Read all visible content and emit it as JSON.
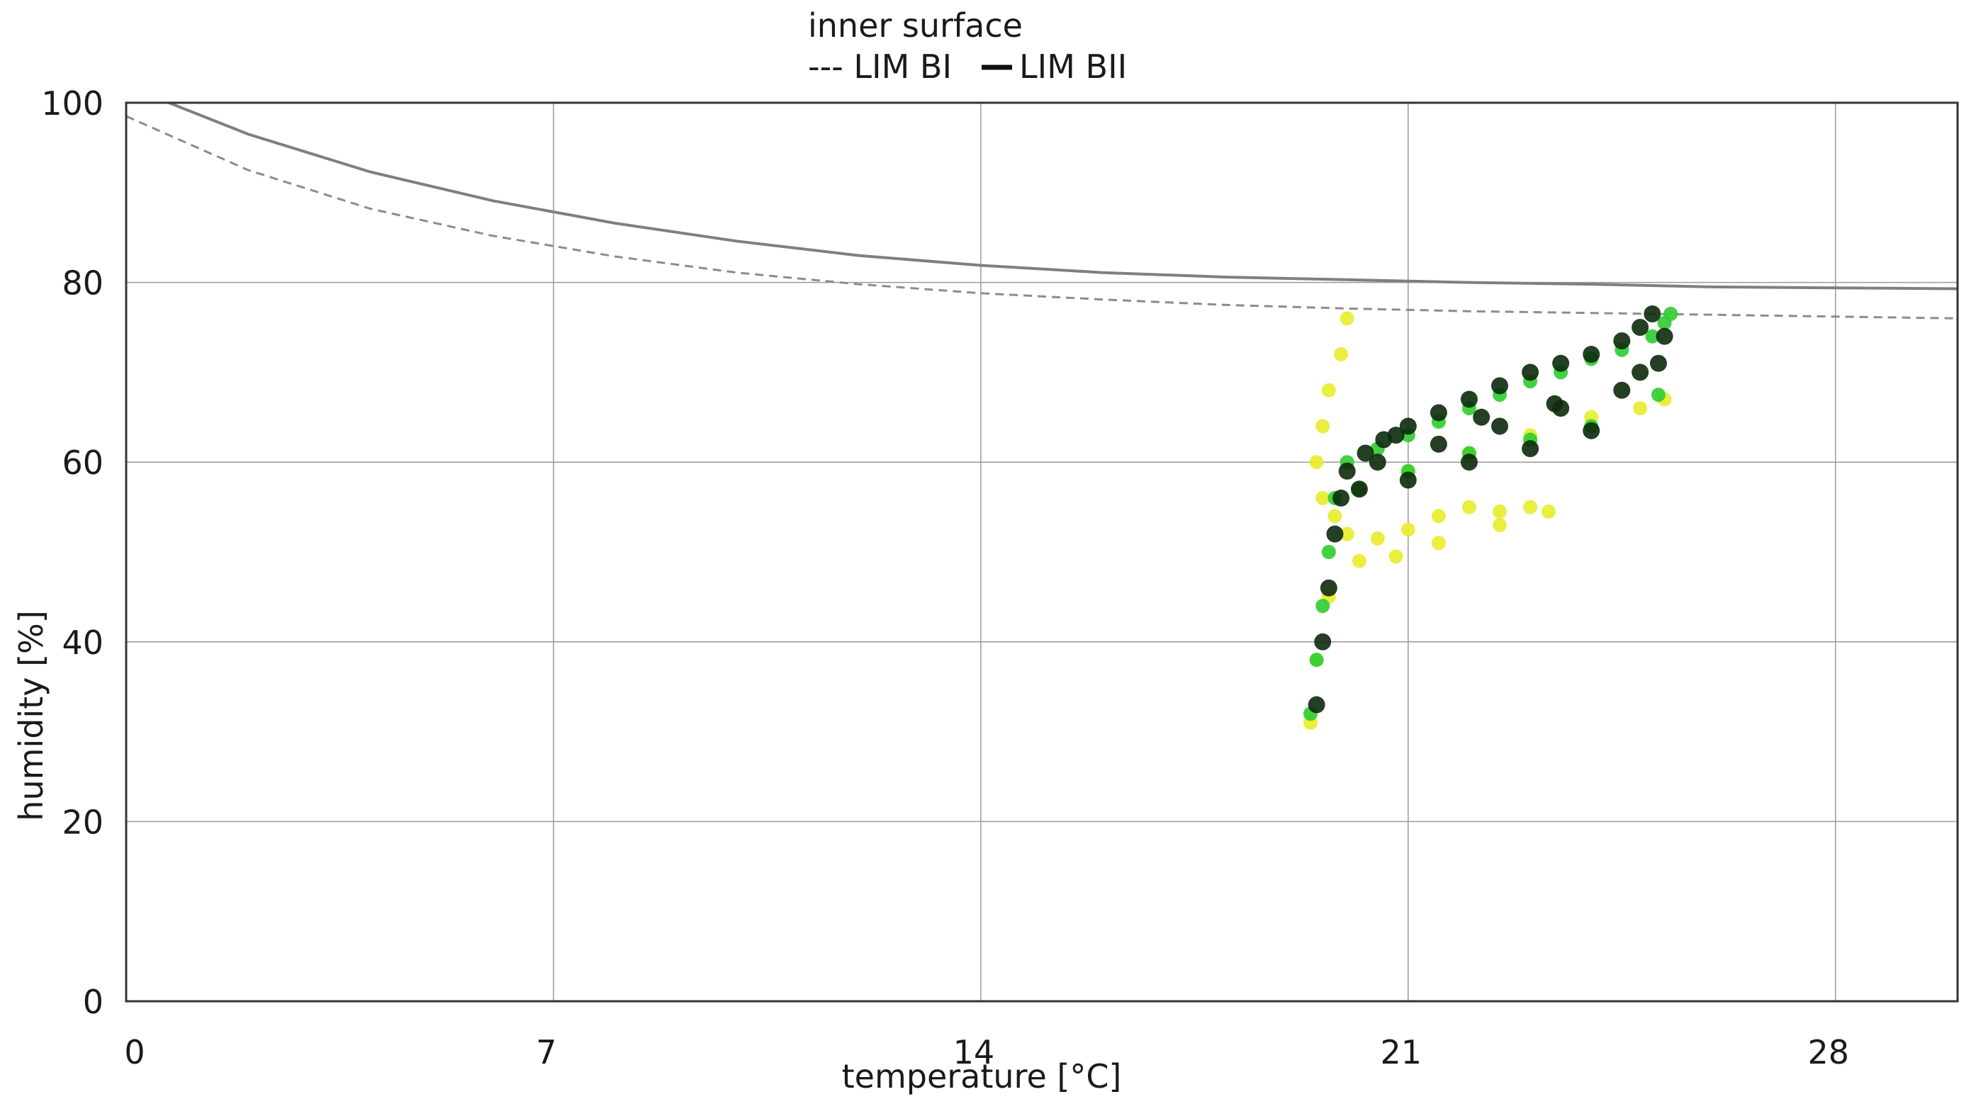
{
  "chart_data": {
    "type": "scatter",
    "title": "inner surface",
    "xlabel": "temperature [°C]",
    "ylabel": "humidity [%]",
    "xlim": [
      0,
      30
    ],
    "ylim": [
      0,
      100
    ],
    "x_ticks": [
      0,
      7,
      14,
      21,
      28
    ],
    "y_ticks": [
      0,
      20,
      40,
      60,
      80,
      100
    ],
    "grid": true,
    "legend_position": "top-center",
    "legend": [
      {
        "label": "--- LIM BI",
        "style": "dashed"
      },
      {
        "label": "LIM BII",
        "style": "solid"
      }
    ],
    "limit_curves": [
      {
        "label": "LIM BII",
        "style": "solid",
        "color": "#7f7f7f",
        "x": [
          0.7,
          2,
          4,
          6,
          8,
          10,
          12,
          14,
          16,
          18,
          20,
          22,
          24,
          26,
          28,
          30
        ],
        "y": [
          100,
          96.5,
          92.3,
          89.1,
          86.6,
          84.6,
          83.0,
          81.9,
          81.1,
          80.6,
          80.3,
          80.0,
          79.8,
          79.5,
          79.4,
          79.3
        ]
      },
      {
        "label": "LIM BI",
        "style": "dashed",
        "color": "#8c8c8c",
        "x": [
          0,
          2,
          4,
          6,
          8,
          10,
          12,
          14,
          16,
          18,
          20,
          22,
          24,
          26,
          28,
          30
        ],
        "y": [
          98.5,
          92.5,
          88.2,
          85.2,
          82.9,
          81.1,
          79.8,
          78.8,
          78.1,
          77.5,
          77.1,
          76.8,
          76.6,
          76.4,
          76.2,
          76.0
        ]
      }
    ],
    "series": [
      {
        "color": "#e8ec2a",
        "x": [
          20.0,
          19.9,
          19.7,
          19.6,
          19.5,
          19.6,
          19.8,
          20.0,
          20.5,
          21.0,
          21.5,
          22.0,
          22.5,
          23.0,
          23.3,
          22.5,
          21.5,
          20.8,
          20.2,
          19.4,
          19.5,
          19.7,
          21.0,
          22.0,
          23.0,
          24.0,
          24.8,
          25.2
        ],
        "y": [
          76.0,
          72.0,
          68.0,
          64.0,
          60.0,
          56.0,
          54.0,
          52.0,
          51.5,
          52.5,
          54.0,
          55.0,
          54.5,
          55.0,
          54.5,
          53.0,
          51.0,
          49.5,
          49.0,
          31.0,
          38.0,
          45.0,
          59.0,
          61.0,
          63.0,
          65.0,
          66.0,
          67.0
        ]
      },
      {
        "color": "#2ecc2e",
        "x": [
          19.4,
          19.5,
          19.6,
          19.7,
          19.8,
          20.0,
          20.5,
          21.0,
          21.5,
          22.0,
          22.5,
          23.0,
          23.5,
          24.0,
          24.5,
          25.0,
          25.2,
          25.3,
          25.1,
          20.2,
          21.0,
          22.0,
          23.0,
          24.0
        ],
        "y": [
          32.0,
          38.0,
          44.0,
          50.0,
          56.0,
          60.0,
          61.5,
          63.0,
          64.5,
          66.0,
          67.5,
          69.0,
          70.0,
          71.5,
          72.5,
          74.0,
          75.5,
          76.5,
          67.5,
          57.0,
          59.0,
          61.0,
          62.5,
          64.0
        ]
      },
      {
        "color": "#0c2a0c",
        "x": [
          19.5,
          19.6,
          19.7,
          19.8,
          19.9,
          20.0,
          20.3,
          20.6,
          21.0,
          21.5,
          22.0,
          22.5,
          23.0,
          23.5,
          24.0,
          24.5,
          24.8,
          25.0,
          25.2,
          25.1,
          24.5,
          23.5,
          22.5,
          21.5,
          20.5,
          20.2,
          21.0,
          22.0,
          23.0,
          24.0,
          24.8,
          20.8,
          22.2,
          23.4
        ],
        "y": [
          33.0,
          40.0,
          46.0,
          52.0,
          56.0,
          59.0,
          61.0,
          62.5,
          64.0,
          65.5,
          67.0,
          68.5,
          70.0,
          71.0,
          72.0,
          73.5,
          75.0,
          76.5,
          74.0,
          71.0,
          68.0,
          66.0,
          64.0,
          62.0,
          60.0,
          57.0,
          58.0,
          60.0,
          61.5,
          63.5,
          70.0,
          63.0,
          65.0,
          66.5
        ]
      }
    ]
  }
}
